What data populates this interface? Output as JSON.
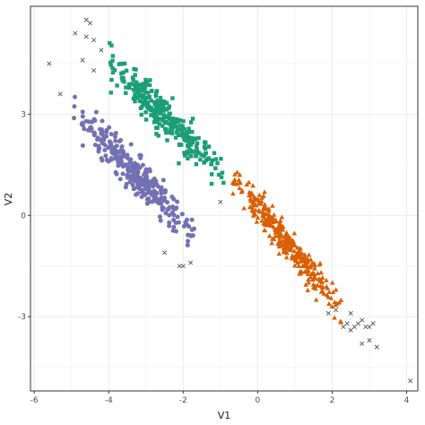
{
  "chart_data": {
    "type": "scatter",
    "title": "",
    "xlabel": "V1",
    "ylabel": "V2",
    "xlim": [
      -6.1,
      4.3
    ],
    "ylim": [
      -5.2,
      6.2
    ],
    "x_ticks": [
      -6,
      -4,
      -2,
      0,
      2,
      4
    ],
    "y_ticks": [
      -3,
      0,
      3
    ],
    "grid": true,
    "legend": "none",
    "series": [
      {
        "marker": "square",
        "color": "#1b9e77",
        "count": 300,
        "x_range": [
          -4.0,
          -0.9
        ],
        "y_center_at_x_min": 4.5,
        "y_slope": -1.06,
        "y_spread": 0.55
      },
      {
        "marker": "circle",
        "color": "#7570b3",
        "count": 320,
        "x_range": [
          -5.0,
          -1.7
        ],
        "y_center_at_x_min": 3.1,
        "y_slope": -1.1,
        "y_spread": 0.55
      },
      {
        "marker": "triangle",
        "color": "#d95f02",
        "count": 320,
        "x_range": [
          -0.7,
          2.3
        ],
        "y_center_at_x_min": 1.2,
        "y_slope": -1.35,
        "y_spread": 0.5
      },
      {
        "marker": "cross",
        "color": "#555555",
        "points": [
          [
            -4.6,
            5.8
          ],
          [
            -4.5,
            5.7
          ],
          [
            -4.9,
            5.4
          ],
          [
            -4.6,
            5.3
          ],
          [
            -4.4,
            5.2
          ],
          [
            -4.2,
            4.9
          ],
          [
            -4.7,
            4.6
          ],
          [
            -4.4,
            4.3
          ],
          [
            -5.6,
            4.5
          ],
          [
            -5.3,
            3.6
          ],
          [
            -1.0,
            0.4
          ],
          [
            -2.5,
            -1.1
          ],
          [
            -2.1,
            -1.5
          ],
          [
            -2.0,
            -1.5
          ],
          [
            -1.8,
            -1.4
          ],
          [
            1.9,
            -2.9
          ],
          [
            2.1,
            -2.8
          ],
          [
            2.4,
            -3.2
          ],
          [
            2.5,
            -2.9
          ],
          [
            2.6,
            -3.3
          ],
          [
            2.7,
            -3.2
          ],
          [
            2.8,
            -3.1
          ],
          [
            2.9,
            -3.3
          ],
          [
            3.0,
            -3.3
          ],
          [
            3.1,
            -3.2
          ],
          [
            2.3,
            -3.3
          ],
          [
            2.5,
            -3.4
          ],
          [
            2.8,
            -3.8
          ],
          [
            3.2,
            -3.9
          ],
          [
            3.0,
            -3.7
          ],
          [
            4.1,
            -4.9
          ]
        ]
      }
    ]
  }
}
